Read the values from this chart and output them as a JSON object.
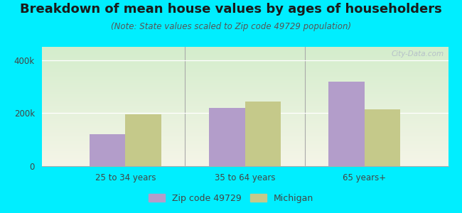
{
  "title": "Breakdown of mean house values by ages of householders",
  "subtitle": "(Note: State values scaled to Zip code 49729 population)",
  "categories": [
    "25 to 34 years",
    "35 to 64 years",
    "65 years+"
  ],
  "zip_values": [
    120000,
    220000,
    320000
  ],
  "michigan_values": [
    195000,
    245000,
    215000
  ],
  "zip_color": "#b39dca",
  "michigan_color": "#c5c98a",
  "background_color": "#00eeff",
  "ylim": [
    0,
    450000
  ],
  "ytick_vals": [
    0,
    200000,
    400000
  ],
  "ytick_labels": [
    "0",
    "200k",
    "400k"
  ],
  "legend_labels": [
    "Zip code 49729",
    "Michigan"
  ],
  "bar_width": 0.3,
  "title_fontsize": 13,
  "subtitle_fontsize": 8.5,
  "tick_fontsize": 8.5,
  "legend_fontsize": 9,
  "gradient_top": "#d4edcc",
  "gradient_bottom": "#f5f5e8",
  "watermark": "City-Data.com",
  "separator_color": "#aaaaaa"
}
